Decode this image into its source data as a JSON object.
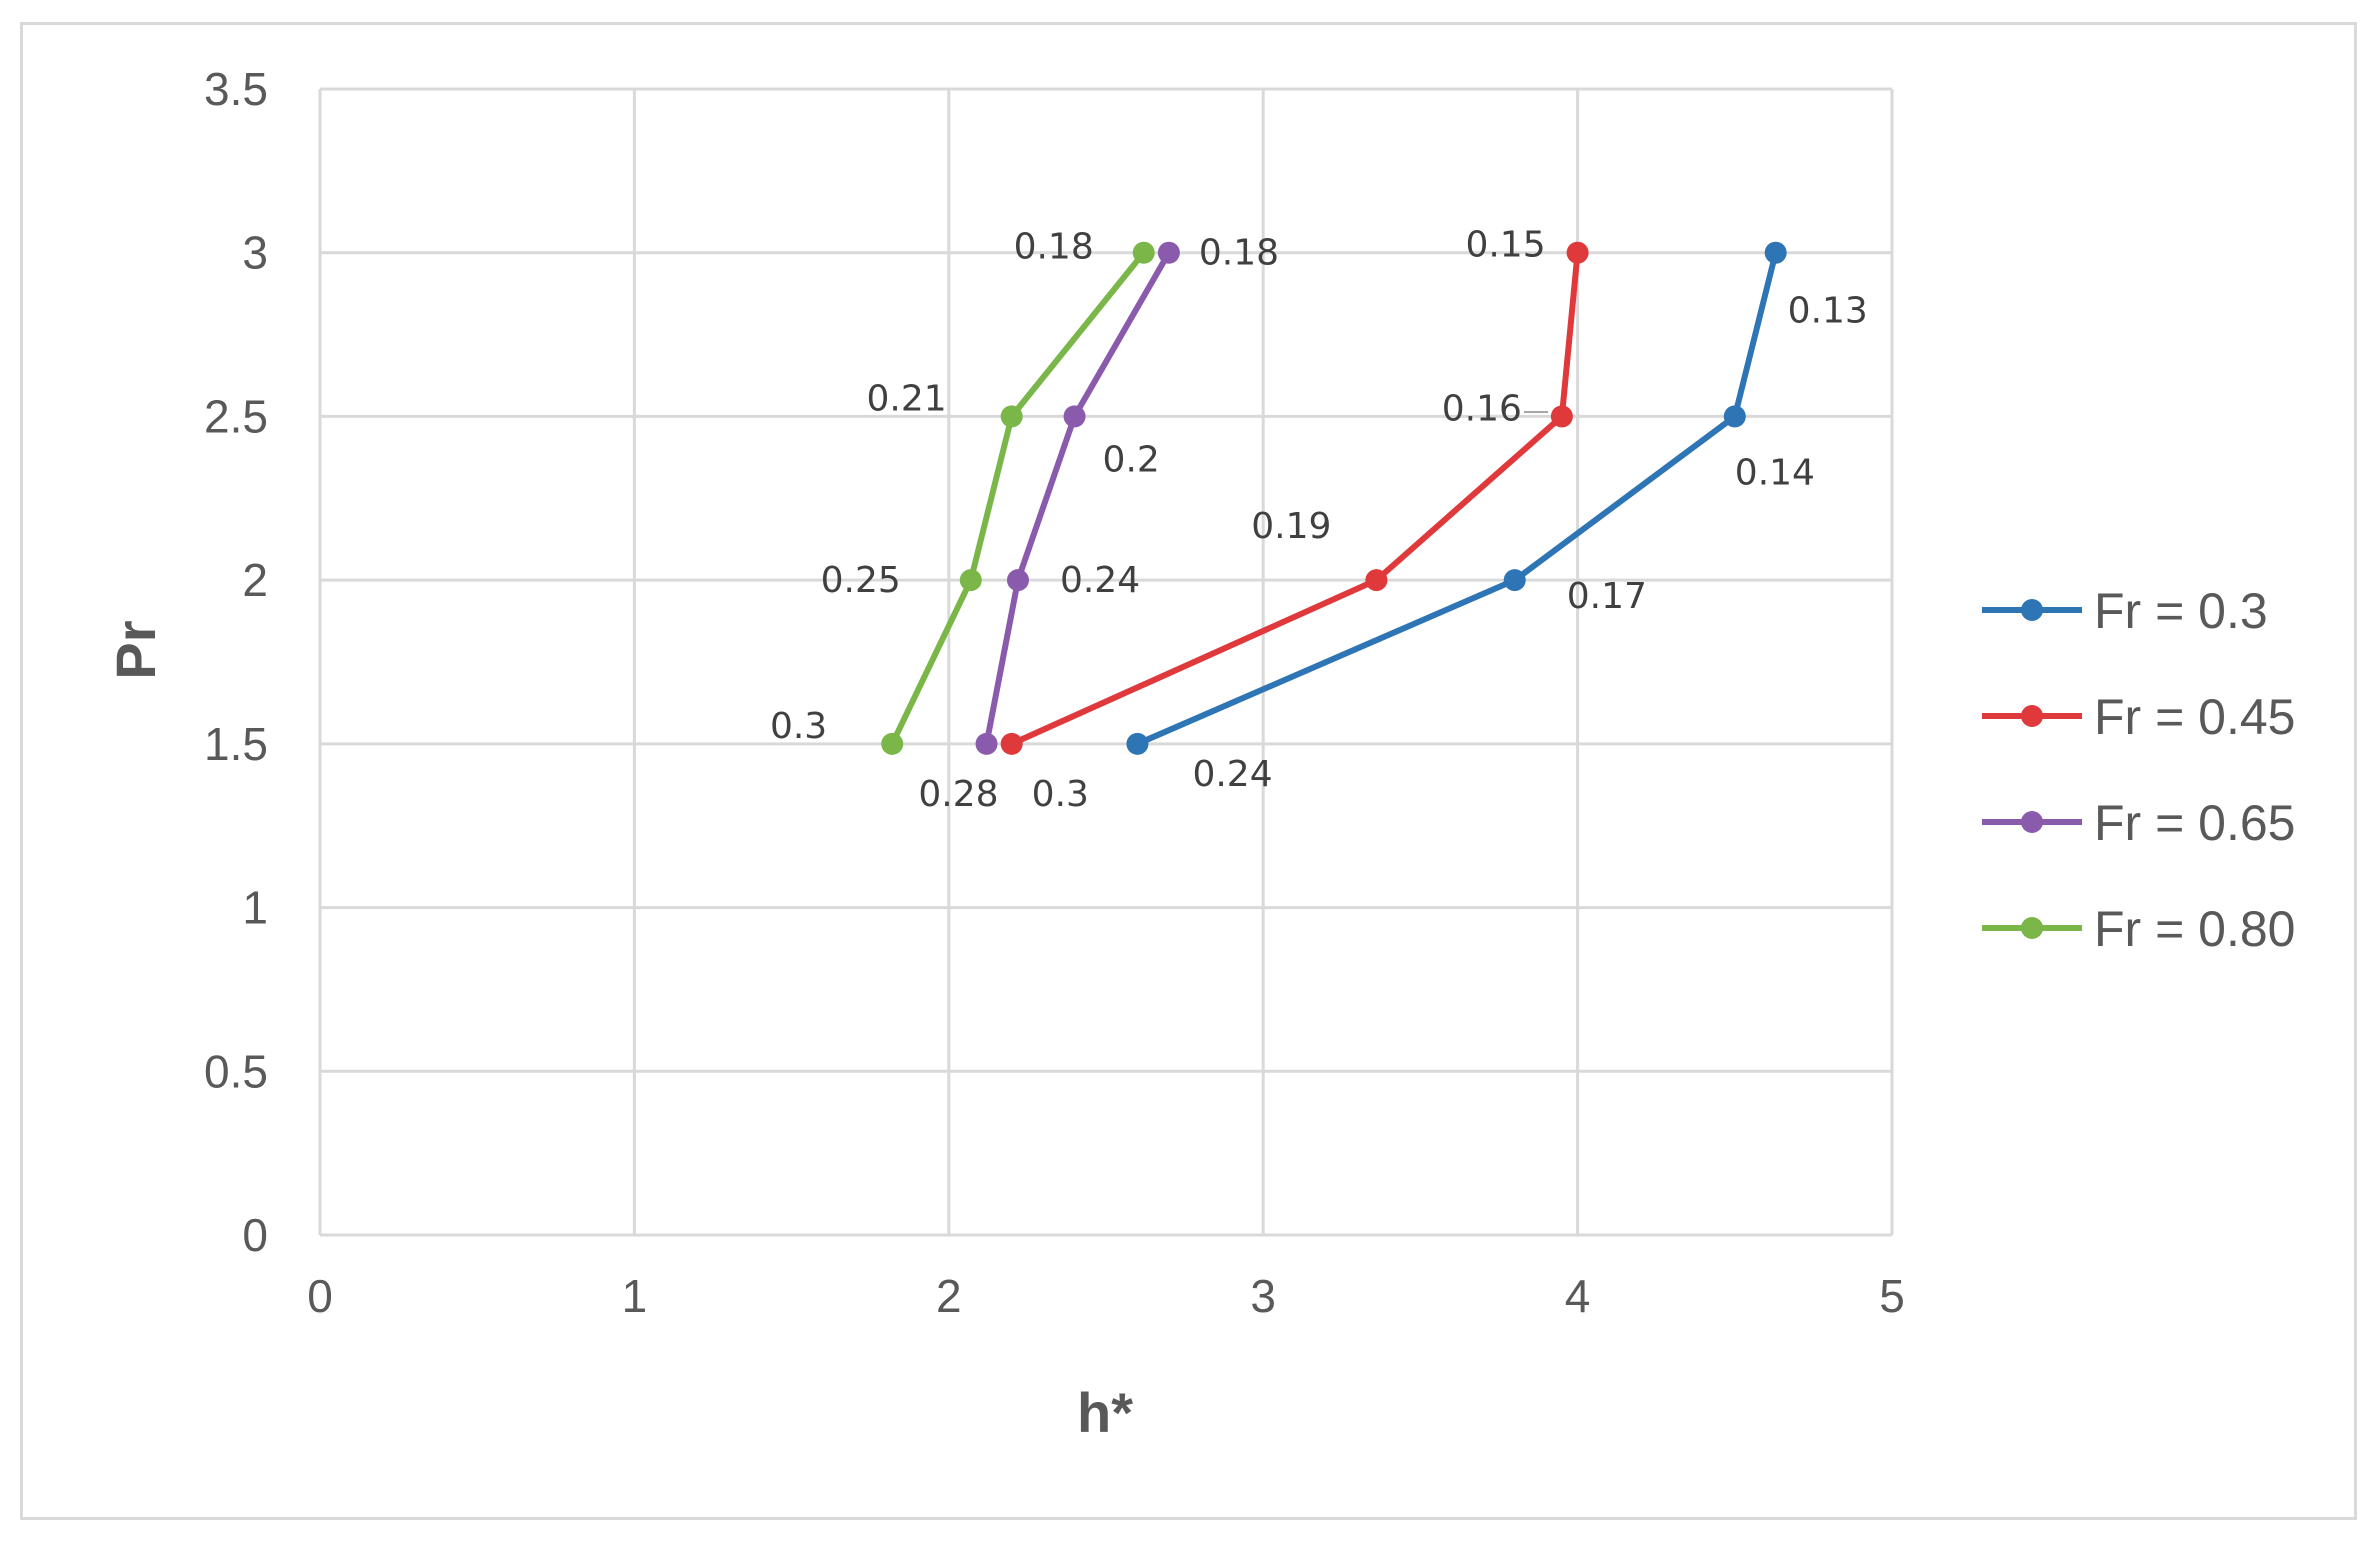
{
  "chart_data": {
    "type": "line",
    "title": "",
    "xlabel": "h*",
    "ylabel": "Pr",
    "xlim": [
      0,
      5
    ],
    "ylim": [
      0,
      3.5
    ],
    "x_ticks": [
      "0",
      "1",
      "2",
      "3",
      "4",
      "5"
    ],
    "y_ticks": [
      "0",
      "0.5",
      "1",
      "1.5",
      "2",
      "2.5",
      "3",
      "3.5"
    ],
    "grid": true,
    "legend_position": "right",
    "series": [
      {
        "name": "Fr = 0.3",
        "color": "#2e75b6",
        "points": [
          {
            "x": 2.6,
            "y": 1.5,
            "label": "0.24"
          },
          {
            "x": 3.8,
            "y": 2.0,
            "label": "0.17"
          },
          {
            "x": 4.5,
            "y": 2.5,
            "label": "0.14"
          },
          {
            "x": 4.63,
            "y": 3.0,
            "label": "0.13"
          }
        ]
      },
      {
        "name": "Fr = 0.45",
        "color": "#e0393b",
        "points": [
          {
            "x": 2.2,
            "y": 1.5,
            "label": "0.3"
          },
          {
            "x": 3.36,
            "y": 2.0,
            "label": "0.19"
          },
          {
            "x": 3.95,
            "y": 2.5,
            "label": "0.16"
          },
          {
            "x": 4.0,
            "y": 3.0,
            "label": "0.15"
          }
        ]
      },
      {
        "name": "Fr = 0.65",
        "color": "#8a5aad",
        "points": [
          {
            "x": 2.12,
            "y": 1.5,
            "label": "0.28"
          },
          {
            "x": 2.22,
            "y": 2.0,
            "label": "0.24"
          },
          {
            "x": 2.4,
            "y": 2.5,
            "label": "0.2"
          },
          {
            "x": 2.7,
            "y": 3.0,
            "label": "0.18"
          }
        ]
      },
      {
        "name": "Fr = 0.80",
        "color": "#7ab648",
        "points": [
          {
            "x": 1.82,
            "y": 1.5,
            "label": "0.3"
          },
          {
            "x": 2.07,
            "y": 2.0,
            "label": "0.25"
          },
          {
            "x": 2.2,
            "y": 2.5,
            "label": "0.21"
          },
          {
            "x": 2.62,
            "y": 3.0,
            "label": "0.18"
          }
        ]
      }
    ]
  }
}
